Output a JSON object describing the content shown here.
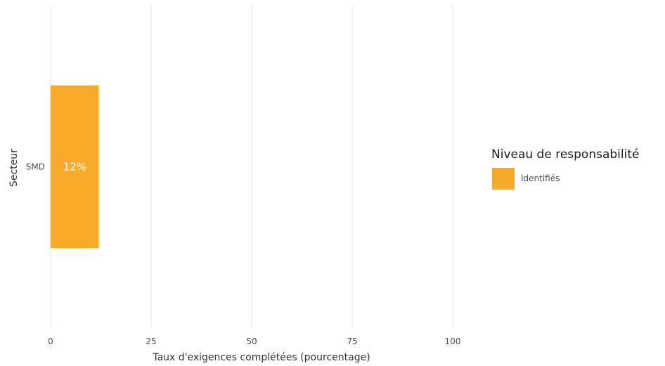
{
  "chart_data": {
    "type": "bar",
    "orientation": "horizontal",
    "categories": [
      "SMD"
    ],
    "series": [
      {
        "name": "Identifiés",
        "values": [
          12
        ],
        "color": "#F8AA2A"
      }
    ],
    "data_labels": [
      "12%"
    ],
    "xlabel": "Taux d'exigences complétées (pourcentage)",
    "ylabel": "Secteur",
    "xlim": [
      0,
      100
    ],
    "x_ticks": [
      0,
      25,
      50,
      75,
      100
    ],
    "x_tick_labels": [
      "0",
      "25",
      "50",
      "75",
      "100"
    ],
    "grid": "vertical",
    "legend": {
      "title": "Niveau de responsabilité",
      "position": "right",
      "items": [
        {
          "label": "Identifiés",
          "color": "#F8AA2A"
        }
      ]
    }
  }
}
